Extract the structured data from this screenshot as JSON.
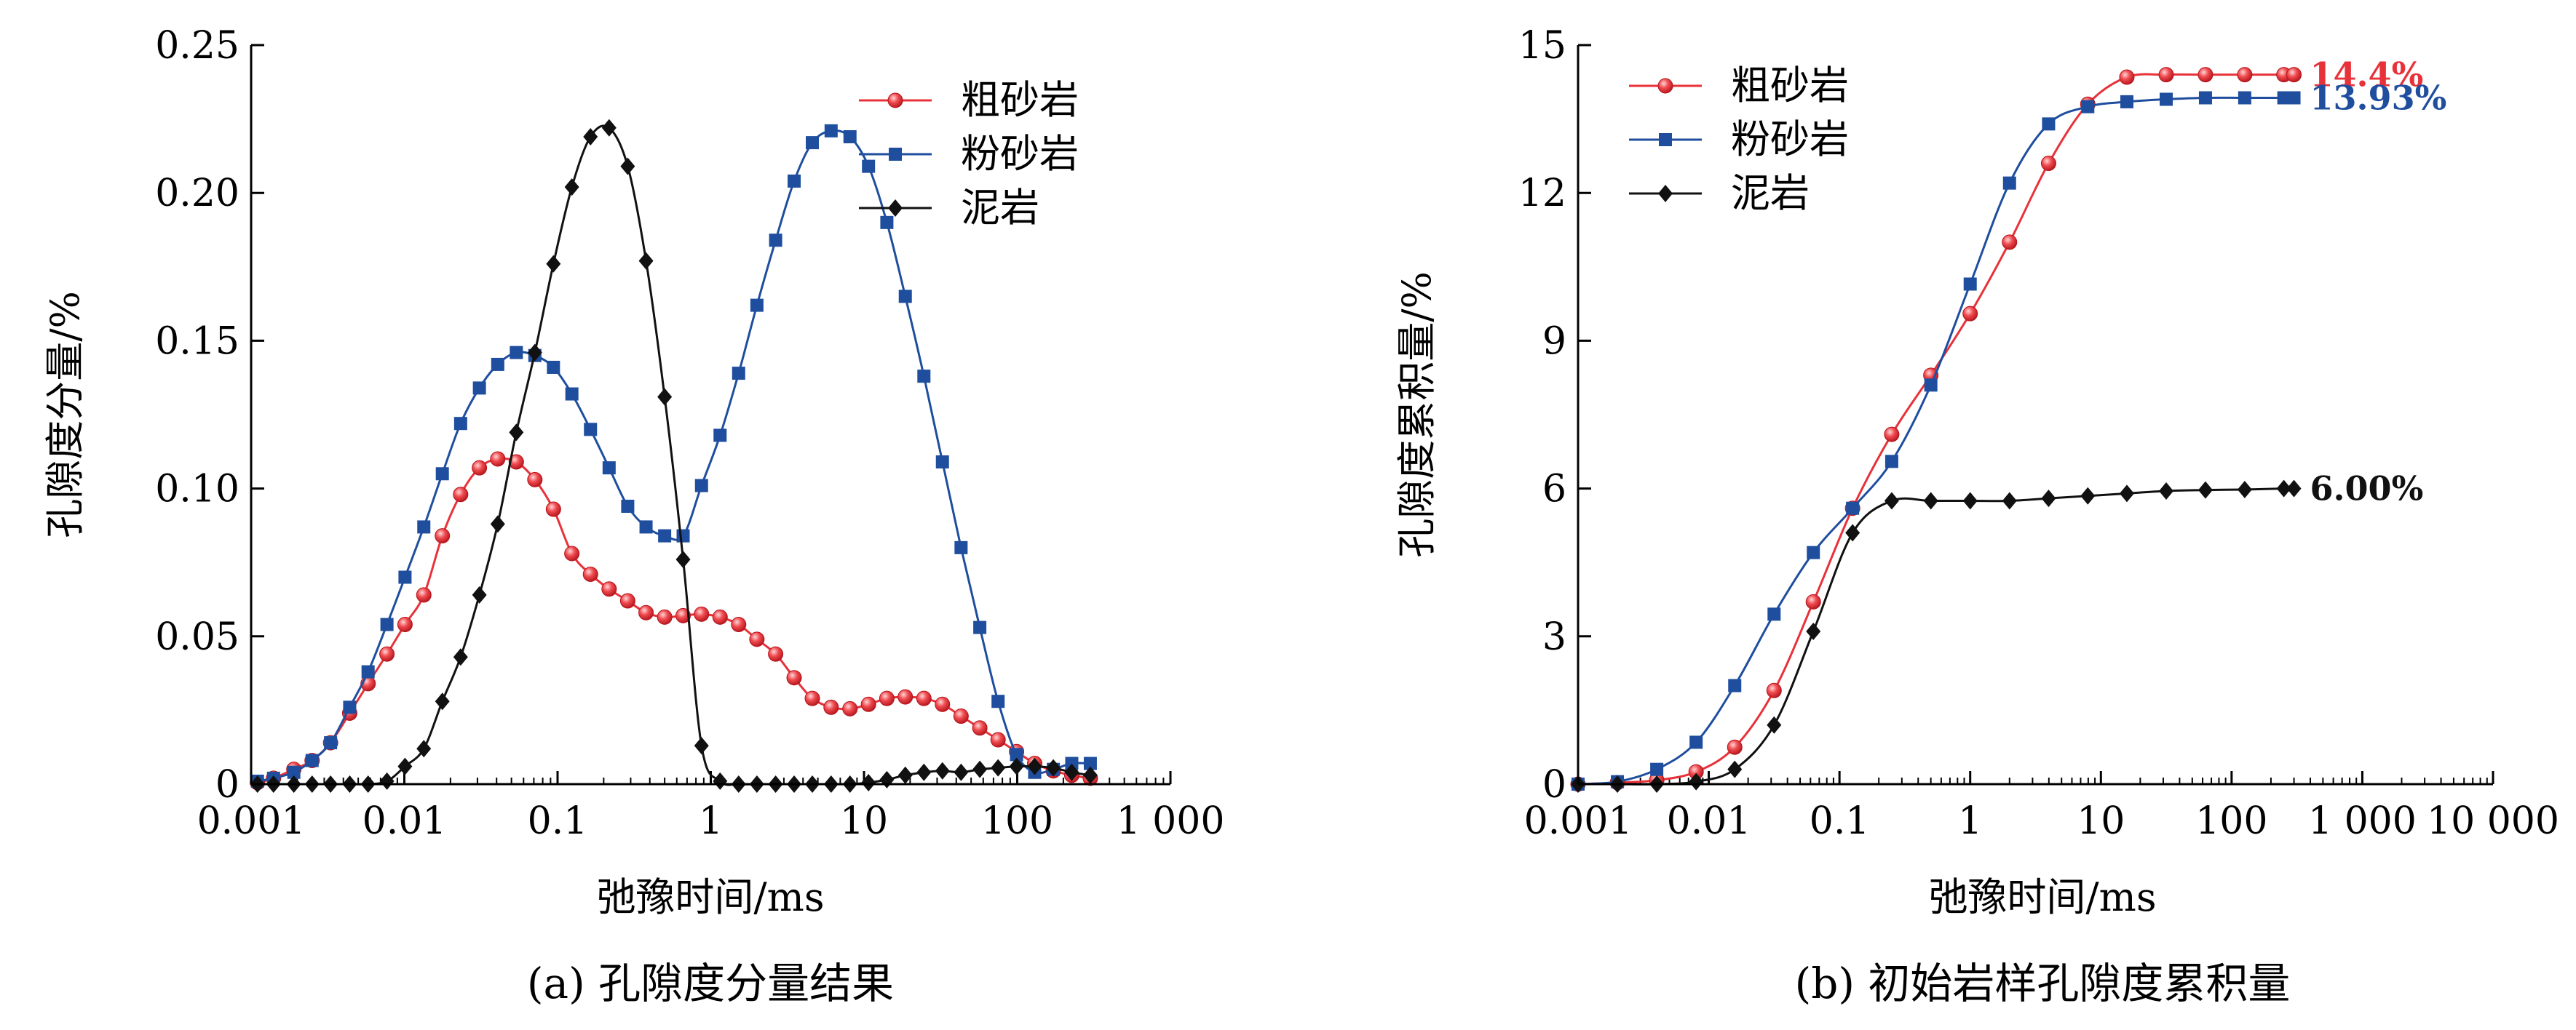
{
  "chart_data": [
    {
      "type": "line",
      "caption": "(a) 孔隙度分量结果",
      "xlabel": "弛豫时间/ms",
      "ylabel": "孔隙度分量/%",
      "xscale": "log",
      "xlim": [
        0.001,
        1000
      ],
      "ylim": [
        0,
        0.25
      ],
      "xticks": [
        0.001,
        0.01,
        0.1,
        1,
        10,
        100,
        1000
      ],
      "xtick_labels": [
        "0.001",
        "0.01",
        "0.1",
        "1",
        "10",
        "100",
        "1 000"
      ],
      "yticks": [
        0,
        0.05,
        0.1,
        0.15,
        0.2,
        0.25
      ],
      "ytick_labels": [
        "0",
        "0.05",
        "0.10",
        "0.15",
        "0.20",
        "0.25"
      ],
      "legend": {
        "position": "top-right"
      },
      "series": [
        {
          "name": "粗砂岩",
          "color": "#e8323a",
          "marker": "circle",
          "points": [
            [
              0.0011,
              0.0005
            ],
            [
              0.0014,
              0.002
            ],
            [
              0.0019,
              0.005
            ],
            [
              0.0025,
              0.008
            ],
            [
              0.0033,
              0.014
            ],
            [
              0.0044,
              0.024
            ],
            [
              0.0058,
              0.034
            ],
            [
              0.0077,
              0.044
            ],
            [
              0.0101,
              0.054
            ],
            [
              0.0134,
              0.064
            ],
            [
              0.0177,
              0.084
            ],
            [
              0.0233,
              0.098
            ],
            [
              0.0309,
              0.107
            ],
            [
              0.0407,
              0.11
            ],
            [
              0.0538,
              0.109
            ],
            [
              0.0711,
              0.103
            ],
            [
              0.094,
              0.093
            ],
            [
              0.124,
              0.078
            ],
            [
              0.164,
              0.071
            ],
            [
              0.217,
              0.066
            ],
            [
              0.287,
              0.062
            ],
            [
              0.378,
              0.058
            ],
            [
              0.5,
              0.0565
            ],
            [
              0.66,
              0.057
            ],
            [
              0.87,
              0.0575
            ],
            [
              1.15,
              0.0565
            ],
            [
              1.52,
              0.054
            ],
            [
              2.0,
              0.049
            ],
            [
              2.65,
              0.044
            ],
            [
              3.5,
              0.036
            ],
            [
              4.6,
              0.029
            ],
            [
              6.1,
              0.026
            ],
            [
              8.1,
              0.0255
            ],
            [
              10.7,
              0.027
            ],
            [
              14.1,
              0.029
            ],
            [
              18.6,
              0.0295
            ],
            [
              24.6,
              0.029
            ],
            [
              32.5,
              0.027
            ],
            [
              43,
              0.023
            ],
            [
              57,
              0.019
            ],
            [
              75,
              0.015
            ],
            [
              99,
              0.011
            ],
            [
              130,
              0.007
            ],
            [
              172,
              0.0045
            ],
            [
              227,
              0.003
            ],
            [
              300,
              0.002
            ]
          ]
        },
        {
          "name": "粉砂岩",
          "color": "#1f4e9e",
          "marker": "square",
          "points": [
            [
              0.0011,
              0.001
            ],
            [
              0.0014,
              0.002
            ],
            [
              0.0019,
              0.004
            ],
            [
              0.0025,
              0.008
            ],
            [
              0.0033,
              0.014
            ],
            [
              0.0044,
              0.026
            ],
            [
              0.0058,
              0.038
            ],
            [
              0.0077,
              0.054
            ],
            [
              0.0101,
              0.07
            ],
            [
              0.0134,
              0.087
            ],
            [
              0.0177,
              0.105
            ],
            [
              0.0233,
              0.122
            ],
            [
              0.0309,
              0.134
            ],
            [
              0.0407,
              0.142
            ],
            [
              0.0538,
              0.146
            ],
            [
              0.0711,
              0.145
            ],
            [
              0.094,
              0.141
            ],
            [
              0.124,
              0.132
            ],
            [
              0.164,
              0.12
            ],
            [
              0.217,
              0.107
            ],
            [
              0.287,
              0.094
            ],
            [
              0.378,
              0.087
            ],
            [
              0.5,
              0.084
            ],
            [
              0.66,
              0.084
            ],
            [
              0.87,
              0.101
            ],
            [
              1.15,
              0.118
            ],
            [
              1.52,
              0.139
            ],
            [
              2.0,
              0.162
            ],
            [
              2.65,
              0.184
            ],
            [
              3.5,
              0.204
            ],
            [
              4.6,
              0.217
            ],
            [
              6.1,
              0.221
            ],
            [
              8.1,
              0.219
            ],
            [
              10.7,
              0.209
            ],
            [
              14.1,
              0.19
            ],
            [
              18.6,
              0.165
            ],
            [
              24.6,
              0.138
            ],
            [
              32.5,
              0.109
            ],
            [
              43,
              0.08
            ],
            [
              57,
              0.053
            ],
            [
              75,
              0.028
            ],
            [
              99,
              0.01
            ],
            [
              130,
              0.004
            ],
            [
              172,
              0.005
            ],
            [
              227,
              0.007
            ],
            [
              300,
              0.007
            ]
          ]
        },
        {
          "name": "泥岩",
          "color": "#111111",
          "marker": "diamond",
          "points": [
            [
              0.0011,
              0
            ],
            [
              0.0014,
              0
            ],
            [
              0.0019,
              0
            ],
            [
              0.0025,
              0
            ],
            [
              0.0033,
              0
            ],
            [
              0.0044,
              0
            ],
            [
              0.0058,
              0
            ],
            [
              0.0077,
              0.001
            ],
            [
              0.0101,
              0.006
            ],
            [
              0.0134,
              0.012
            ],
            [
              0.0177,
              0.028
            ],
            [
              0.0233,
              0.043
            ],
            [
              0.0309,
              0.064
            ],
            [
              0.0407,
              0.088
            ],
            [
              0.0538,
              0.119
            ],
            [
              0.0711,
              0.146
            ],
            [
              0.094,
              0.176
            ],
            [
              0.124,
              0.202
            ],
            [
              0.164,
              0.219
            ],
            [
              0.217,
              0.222
            ],
            [
              0.287,
              0.209
            ],
            [
              0.378,
              0.177
            ],
            [
              0.5,
              0.131
            ],
            [
              0.66,
              0.076
            ],
            [
              0.87,
              0.013
            ],
            [
              1.15,
              0.001
            ],
            [
              1.52,
              0
            ],
            [
              2.0,
              0
            ],
            [
              2.65,
              0
            ],
            [
              3.5,
              0
            ],
            [
              4.6,
              0
            ],
            [
              6.1,
              0
            ],
            [
              8.1,
              0
            ],
            [
              10.7,
              0.0005
            ],
            [
              14.1,
              0.0015
            ],
            [
              18.6,
              0.003
            ],
            [
              24.6,
              0.004
            ],
            [
              32.5,
              0.0045
            ],
            [
              43,
              0.004
            ],
            [
              57,
              0.005
            ],
            [
              75,
              0.0055
            ],
            [
              99,
              0.006
            ],
            [
              130,
              0.006
            ],
            [
              172,
              0.0055
            ],
            [
              227,
              0.004
            ],
            [
              300,
              0.003
            ]
          ]
        }
      ]
    },
    {
      "type": "line",
      "caption": "(b) 初始岩样孔隙度累积量",
      "xlabel": "弛豫时间/ms",
      "ylabel": "孔隙度累积量/%",
      "xscale": "log",
      "xlim": [
        0.001,
        10000
      ],
      "ylim": [
        0,
        15
      ],
      "xticks": [
        0.001,
        0.01,
        0.1,
        1,
        10,
        100,
        1000,
        10000
      ],
      "xtick_labels": [
        "0.001",
        "0.01",
        "0.1",
        "1",
        "10",
        "100",
        "1 000",
        "10 000"
      ],
      "yticks": [
        0,
        3,
        6,
        9,
        12,
        15
      ],
      "ytick_labels": [
        "0",
        "3",
        "6",
        "9",
        "12",
        "15"
      ],
      "legend": {
        "position": "top-left"
      },
      "series": [
        {
          "name": "粗砂岩",
          "color": "#e8323a",
          "marker": "circle",
          "end_label": "14.4%",
          "points": [
            [
              0.001,
              0
            ],
            [
              0.002,
              0.03
            ],
            [
              0.004,
              0.08
            ],
            [
              0.008,
              0.25
            ],
            [
              0.0158,
              0.75
            ],
            [
              0.0316,
              1.9
            ],
            [
              0.0631,
              3.7
            ],
            [
              0.126,
              5.6
            ],
            [
              0.251,
              7.1
            ],
            [
              0.5,
              8.3
            ],
            [
              1.0,
              9.55
            ],
            [
              2.0,
              11.0
            ],
            [
              3.98,
              12.6
            ],
            [
              7.94,
              13.8
            ],
            [
              15.8,
              14.35
            ],
            [
              31.6,
              14.4
            ],
            [
              63.1,
              14.4
            ],
            [
              126,
              14.4
            ],
            [
              251,
              14.4
            ],
            [
              300,
              14.4
            ]
          ]
        },
        {
          "name": "粉砂岩",
          "color": "#1f4e9e",
          "marker": "square",
          "end_label": "13.93%",
          "points": [
            [
              0.001,
              0
            ],
            [
              0.002,
              0.05
            ],
            [
              0.004,
              0.3
            ],
            [
              0.008,
              0.85
            ],
            [
              0.0158,
              2.0
            ],
            [
              0.0316,
              3.45
            ],
            [
              0.0631,
              4.7
            ],
            [
              0.126,
              5.6
            ],
            [
              0.251,
              6.55
            ],
            [
              0.5,
              8.1
            ],
            [
              1.0,
              10.15
            ],
            [
              2.0,
              12.2
            ],
            [
              3.98,
              13.4
            ],
            [
              7.94,
              13.75
            ],
            [
              15.8,
              13.85
            ],
            [
              31.6,
              13.9
            ],
            [
              63.1,
              13.93
            ],
            [
              126,
              13.93
            ],
            [
              251,
              13.93
            ],
            [
              300,
              13.93
            ]
          ]
        },
        {
          "name": "泥岩",
          "color": "#111111",
          "marker": "diamond",
          "end_label": "6.00%",
          "points": [
            [
              0.001,
              0
            ],
            [
              0.002,
              0
            ],
            [
              0.004,
              0
            ],
            [
              0.008,
              0.05
            ],
            [
              0.0158,
              0.3
            ],
            [
              0.0316,
              1.2
            ],
            [
              0.0631,
              3.1
            ],
            [
              0.126,
              5.1
            ],
            [
              0.251,
              5.75
            ],
            [
              0.5,
              5.75
            ],
            [
              1.0,
              5.75
            ],
            [
              2.0,
              5.75
            ],
            [
              3.98,
              5.8
            ],
            [
              7.94,
              5.85
            ],
            [
              15.8,
              5.9
            ],
            [
              31.6,
              5.95
            ],
            [
              63.1,
              5.97
            ],
            [
              126,
              5.98
            ],
            [
              251,
              6.0
            ],
            [
              300,
              6.0
            ]
          ]
        }
      ]
    }
  ]
}
